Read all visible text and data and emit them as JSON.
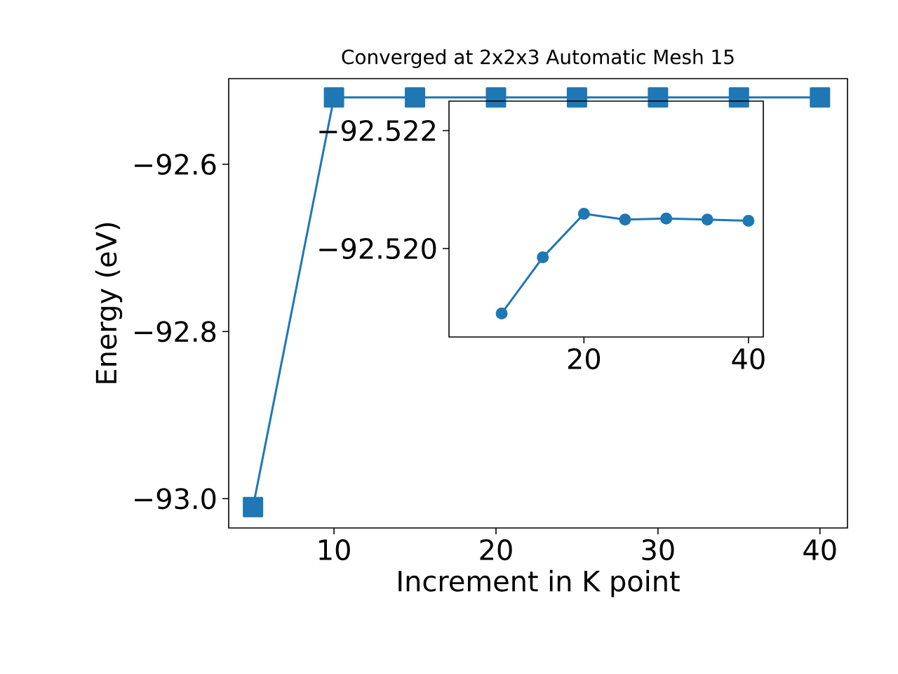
{
  "chart_data": [
    {
      "type": "line",
      "title": "Converged at 2x2x3 Automatic Mesh 15",
      "xlabel": "Increment in K point",
      "ylabel": "Energy (eV)",
      "x": [
        5,
        10,
        15,
        20,
        25,
        30,
        35,
        40
      ],
      "series": [
        {
          "color": "#1f77b4",
          "values": [
            -93.01,
            -92.52,
            -92.52,
            -92.52,
            -92.52,
            -92.52,
            -92.52,
            -92.52
          ]
        }
      ],
      "xlim": [
        3.5,
        41.7
      ],
      "ylim": [
        -93.035,
        -92.4975
      ],
      "xticks": [
        10,
        20,
        30,
        40
      ],
      "yticks": [
        {
          "value": -93.0,
          "label": "−93.0"
        },
        {
          "value": -92.8,
          "label": "−92.8"
        },
        {
          "value": -92.6,
          "label": "−92.6"
        }
      ],
      "marker": "square",
      "grid": false
    },
    {
      "type": "line",
      "x": [
        10,
        15,
        20,
        25,
        30,
        35,
        40
      ],
      "series": [
        {
          "color": "#1f77b4",
          "values": [
            -92.5189,
            -92.51985,
            -92.52059,
            -92.52049,
            -92.52051,
            -92.52049,
            -92.52047
          ]
        }
      ],
      "xlim": [
        3.6,
        41.8
      ],
      "ylim": [
        -92.5185,
        -92.5225
      ],
      "xticks": [
        20,
        40
      ],
      "yticks": [
        {
          "value": -92.522,
          "label": "−92.522"
        },
        {
          "value": -92.52,
          "label": "−92.520"
        }
      ],
      "marker": "circle",
      "grid": false
    }
  ]
}
